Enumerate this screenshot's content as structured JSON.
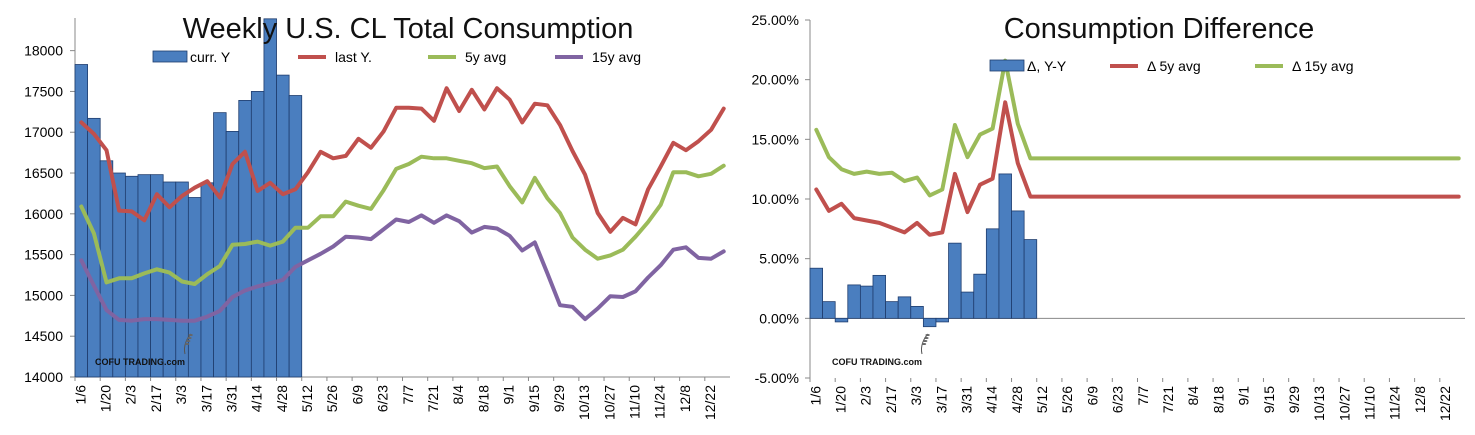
{
  "chart_data": [
    {
      "type": "bar+line",
      "title": "Weekly U.S. CL Total Consumption",
      "xlabel": "",
      "ylabel": "",
      "ylim": [
        14000,
        18400
      ],
      "yticks": [
        "14000",
        "14500",
        "15000",
        "15500",
        "16000",
        "16500",
        "17000",
        "17500",
        "18000"
      ],
      "ytick_values": [
        14000,
        14500,
        15000,
        15500,
        16000,
        16500,
        17000,
        17500,
        18000
      ],
      "week_count": 52,
      "xtick_labels": [
        "1/6",
        "1/20",
        "2/3",
        "2/17",
        "3/3",
        "3/17",
        "3/31",
        "4/14",
        "4/28",
        "5/12",
        "5/26",
        "6/9",
        "6/23",
        "7/7",
        "7/21",
        "8/4",
        "8/18",
        "9/1",
        "9/15",
        "9/29",
        "10/13",
        "10/27",
        "11/10",
        "11/24",
        "12/8",
        "12/22"
      ],
      "legend": [
        "curr. Y",
        "last Y.",
        "5y avg",
        "15y avg"
      ],
      "watermark": "COFU TRADING.com",
      "colors": {
        "bar": "#4a7ebf",
        "bar_edge": "#1f3d6e",
        "last": "#c0504d",
        "avg5": "#9bbb59",
        "avg15": "#8064a2"
      },
      "series": [
        {
          "name": "curr. Y",
          "kind": "bar",
          "values": [
            17830,
            17170,
            16650,
            16500,
            16460,
            16480,
            16480,
            16390,
            16390,
            16200,
            16380,
            17240,
            17010,
            17390,
            17500,
            18390,
            17700,
            17450
          ]
        },
        {
          "name": "last Y.",
          "kind": "line",
          "values": [
            17120,
            16980,
            16780,
            16040,
            16030,
            15920,
            16240,
            16080,
            16220,
            16320,
            16400,
            16200,
            16610,
            16760,
            16280,
            16380,
            16240,
            16300,
            16510,
            16760,
            16680,
            16710,
            16920,
            16810,
            17010,
            17300,
            17300,
            17290,
            17140,
            17540,
            17260,
            17520,
            17280,
            17540,
            17400,
            17120,
            17350,
            17330,
            17090,
            16770,
            16480,
            16010,
            15780,
            15950,
            15870,
            16300,
            16580,
            16870,
            16780,
            16890,
            17030,
            17290
          ]
        },
        {
          "name": "5y avg",
          "kind": "line",
          "values": [
            16090,
            15760,
            15160,
            15210,
            15210,
            15270,
            15320,
            15280,
            15170,
            15140,
            15260,
            15360,
            15620,
            15630,
            15660,
            15610,
            15660,
            15830,
            15830,
            15970,
            15970,
            16150,
            16100,
            16060,
            16290,
            16550,
            16610,
            16700,
            16680,
            16680,
            16650,
            16620,
            16560,
            16580,
            16340,
            16140,
            16440,
            16190,
            16010,
            15710,
            15560,
            15450,
            15490,
            15560,
            15720,
            15900,
            16110,
            16510,
            16510,
            16460,
            16490,
            16590
          ]
        },
        {
          "name": "15y avg",
          "kind": "line",
          "values": [
            15430,
            15120,
            14820,
            14700,
            14690,
            14710,
            14710,
            14700,
            14690,
            14690,
            14740,
            14810,
            14980,
            15060,
            15110,
            15150,
            15190,
            15350,
            15430,
            15510,
            15600,
            15720,
            15710,
            15690,
            15810,
            15930,
            15900,
            15980,
            15890,
            15980,
            15910,
            15770,
            15840,
            15820,
            15730,
            15550,
            15650,
            15270,
            14880,
            14860,
            14710,
            14840,
            14990,
            14980,
            15050,
            15220,
            15370,
            15560,
            15590,
            15460,
            15450,
            15540
          ]
        }
      ]
    },
    {
      "type": "bar+line",
      "title": "Consumption Difference",
      "xlabel": "",
      "ylabel": "",
      "ylim": [
        -5,
        25
      ],
      "yticks": [
        "-5.00%",
        "0.00%",
        "5.00%",
        "10.00%",
        "15.00%",
        "20.00%",
        "25.00%"
      ],
      "ytick_values": [
        -5,
        0,
        5,
        10,
        15,
        20,
        25
      ],
      "week_count": 52,
      "xtick_labels": [
        "1/6",
        "1/20",
        "2/3",
        "2/17",
        "3/3",
        "3/17",
        "3/31",
        "4/14",
        "4/28",
        "5/12",
        "5/26",
        "6/9",
        "6/23",
        "7/7",
        "7/21",
        "8/4",
        "8/18",
        "9/1",
        "9/15",
        "9/29",
        "10/13",
        "10/27",
        "11/10",
        "11/24",
        "12/8",
        "12/22"
      ],
      "legend": [
        "Δ, Y-Y",
        "Δ 5y avg",
        "Δ 15y avg"
      ],
      "watermark": "COFU TRADING.com",
      "colors": {
        "bar": "#4a7ebf",
        "bar_edge": "#1f3d6e",
        "d5": "#c0504d",
        "d15": "#9bbb59"
      },
      "series": [
        {
          "name": "Δ, Y-Y",
          "kind": "bar",
          "values": [
            4.2,
            1.4,
            -0.3,
            2.8,
            2.7,
            3.6,
            1.4,
            1.8,
            1.0,
            -0.7,
            -0.3,
            6.3,
            2.2,
            3.7,
            7.5,
            12.1,
            9.0,
            6.6
          ]
        },
        {
          "name": "Δ 5y avg",
          "kind": "line",
          "values": [
            10.8,
            9.0,
            9.6,
            8.4,
            8.2,
            8.0,
            7.6,
            7.2,
            8.0,
            7.0,
            7.2,
            12.1,
            8.9,
            11.2,
            11.7,
            18.1,
            13.0,
            10.2,
            10.2,
            10.2,
            10.2,
            10.2,
            10.2,
            10.2,
            10.2,
            10.2,
            10.2,
            10.2,
            10.2,
            10.2,
            10.2,
            10.2,
            10.2,
            10.2,
            10.2,
            10.2,
            10.2,
            10.2,
            10.2,
            10.2,
            10.2,
            10.2,
            10.2,
            10.2,
            10.2,
            10.2,
            10.2,
            10.2,
            10.2,
            10.2,
            10.2,
            10.2
          ]
        },
        {
          "name": "Δ 15y avg",
          "kind": "line",
          "values": [
            15.8,
            13.5,
            12.5,
            12.1,
            12.3,
            12.1,
            12.2,
            11.5,
            11.8,
            10.3,
            10.8,
            16.2,
            13.5,
            15.4,
            15.9,
            21.6,
            16.3,
            13.4,
            13.4,
            13.4,
            13.4,
            13.4,
            13.4,
            13.4,
            13.4,
            13.4,
            13.4,
            13.4,
            13.4,
            13.4,
            13.4,
            13.4,
            13.4,
            13.4,
            13.4,
            13.4,
            13.4,
            13.4,
            13.4,
            13.4,
            13.4,
            13.4,
            13.4,
            13.4,
            13.4,
            13.4,
            13.4,
            13.4,
            13.4,
            13.4,
            13.4,
            13.4
          ]
        }
      ]
    }
  ]
}
